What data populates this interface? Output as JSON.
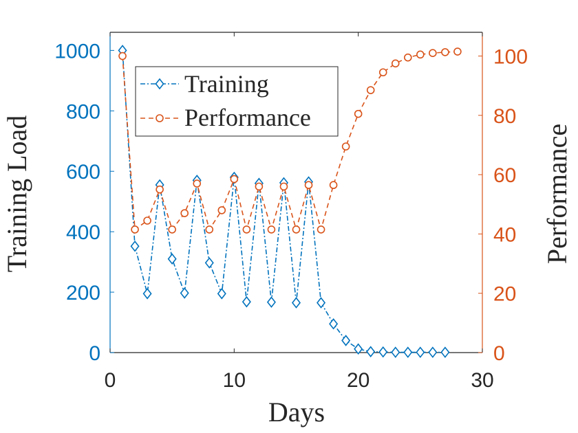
{
  "chart_data": {
    "type": "line",
    "xlabel": "Days",
    "ylabel_left": "Training Load",
    "ylabel_right": "Performance",
    "xlim": [
      0,
      30
    ],
    "ylim_left": [
      0,
      1060
    ],
    "ylim_right": [
      0,
      108
    ],
    "xticks": [
      0,
      10,
      20,
      30
    ],
    "yticks_left": [
      0,
      200,
      400,
      600,
      800,
      1000
    ],
    "yticks_right": [
      0,
      20,
      40,
      60,
      80,
      100
    ],
    "legend_position": "top-left",
    "colors": {
      "training": "#0072BD",
      "performance": "#D95319",
      "axis": "#262626"
    },
    "series": [
      {
        "name": "Training",
        "axis": "left",
        "marker": "diamond",
        "line_style": "dash-dot",
        "x": [
          1,
          2,
          3,
          4,
          5,
          6,
          7,
          8,
          9,
          10,
          11,
          12,
          13,
          14,
          15,
          16,
          17,
          18,
          19,
          20,
          21,
          22,
          23,
          24,
          25,
          26,
          27
        ],
        "y": [
          1000,
          352,
          195,
          555,
          310,
          197,
          570,
          297,
          195,
          580,
          168,
          560,
          167,
          562,
          165,
          565,
          165,
          95,
          40,
          12,
          3,
          2,
          1,
          1,
          1,
          1,
          1
        ]
      },
      {
        "name": "Performance",
        "axis": "right",
        "marker": "circle",
        "line_style": "dashed",
        "x": [
          1,
          2,
          3,
          4,
          5,
          6,
          7,
          8,
          9,
          10,
          11,
          12,
          13,
          14,
          15,
          16,
          17,
          18,
          19,
          20,
          21,
          22,
          23,
          24,
          25,
          26,
          27,
          28
        ],
        "y": [
          100,
          41.5,
          44.5,
          55,
          41.5,
          47,
          57,
          41.5,
          48,
          58.5,
          41.5,
          56,
          41.5,
          56,
          41.5,
          56.5,
          41.5,
          56.5,
          69.5,
          80.5,
          88.5,
          94.5,
          97.5,
          99.5,
          100.5,
          101,
          101.3,
          101.5
        ]
      }
    ]
  }
}
